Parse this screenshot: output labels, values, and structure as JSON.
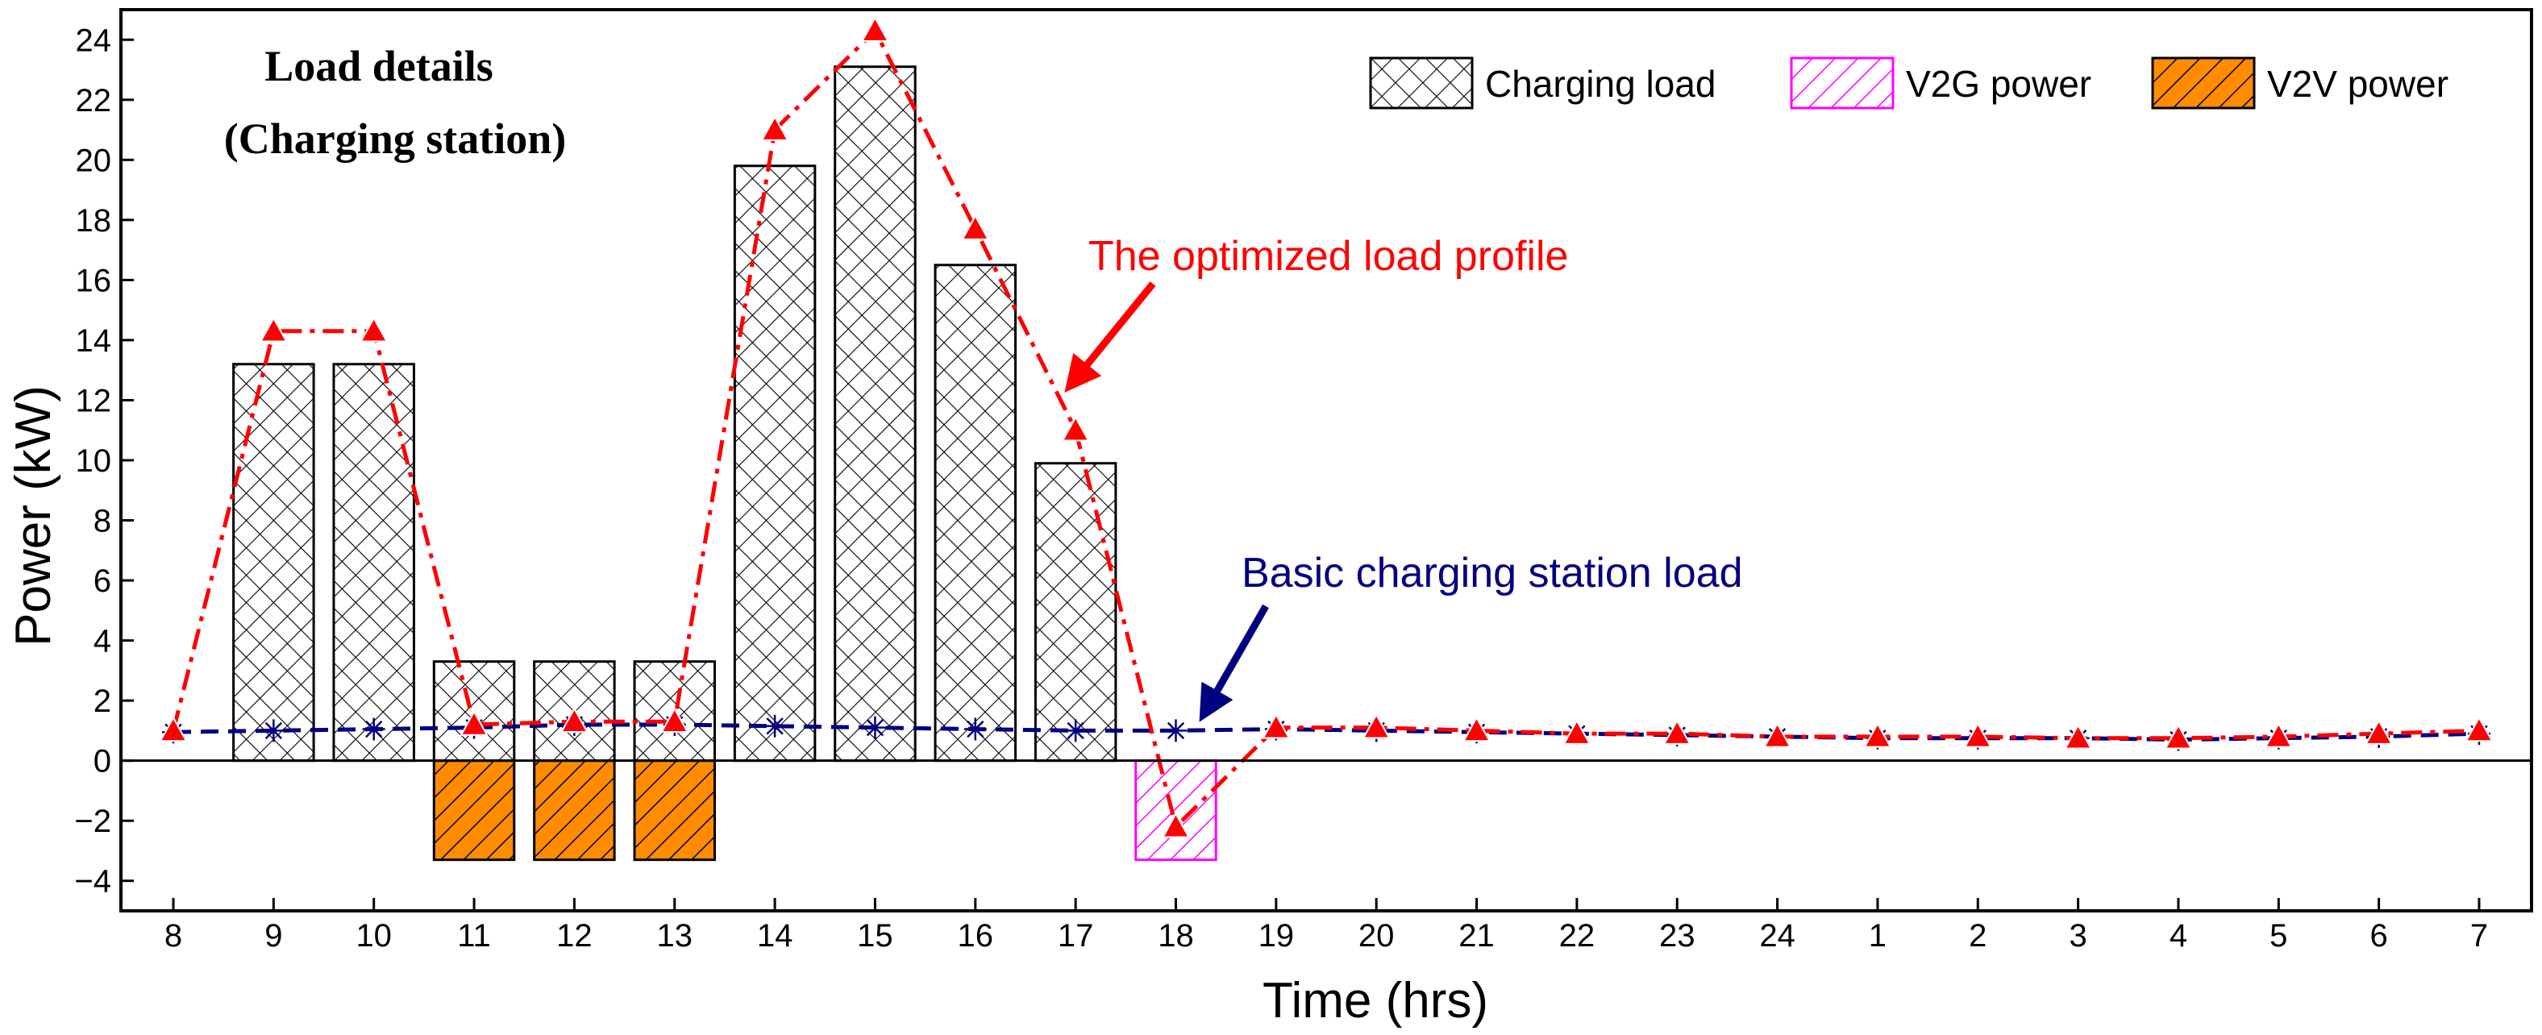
{
  "chart_data": {
    "type": "bar",
    "title_lines": [
      "Load details",
      "(Charging station)"
    ],
    "xlabel": "Time (hrs)",
    "ylabel": "Power (kW)",
    "ylim": [
      -5,
      25
    ],
    "yticks": [
      -4,
      -2,
      0,
      2,
      4,
      6,
      8,
      10,
      12,
      14,
      16,
      18,
      20,
      22,
      24
    ],
    "categories": [
      "8",
      "9",
      "10",
      "11",
      "12",
      "13",
      "14",
      "15",
      "16",
      "17",
      "18",
      "19",
      "20",
      "21",
      "22",
      "23",
      "24",
      "1",
      "2",
      "3",
      "4",
      "5",
      "6",
      "7"
    ],
    "legend": [
      "Charging load",
      "V2G power",
      "V2V power"
    ],
    "series": [
      {
        "name": "Charging load",
        "kind": "bar",
        "pattern": "crosshatch",
        "values": [
          0,
          13.2,
          13.2,
          3.3,
          3.3,
          3.3,
          19.8,
          23.1,
          16.5,
          9.9,
          0,
          0,
          0,
          0,
          0,
          0,
          0,
          0,
          0,
          0,
          0,
          0,
          0,
          0
        ]
      },
      {
        "name": "V2G power",
        "kind": "bar",
        "pattern": "diagonal",
        "values": [
          0,
          0,
          0,
          0,
          0,
          0,
          0,
          0,
          0,
          0,
          -3.3,
          0,
          0,
          0,
          0,
          0,
          0,
          0,
          0,
          0,
          0,
          0,
          0,
          0
        ]
      },
      {
        "name": "V2V power",
        "kind": "bar",
        "pattern": "diagonal-filled",
        "values": [
          0,
          0,
          0,
          -3.3,
          -3.3,
          -3.3,
          0,
          0,
          0,
          0,
          0,
          0,
          0,
          0,
          0,
          0,
          0,
          0,
          0,
          0,
          0,
          0,
          0,
          0
        ]
      },
      {
        "name": "The optimized load profile",
        "kind": "line",
        "values": [
          1.0,
          14.3,
          14.3,
          1.2,
          1.3,
          1.3,
          21.0,
          24.3,
          17.7,
          11.0,
          -2.2,
          1.1,
          1.1,
          1.0,
          0.9,
          0.9,
          0.8,
          0.8,
          0.8,
          0.75,
          0.75,
          0.8,
          0.9,
          1.0
        ]
      },
      {
        "name": "Basic charging station load",
        "kind": "line",
        "values": [
          0.95,
          1.0,
          1.05,
          1.1,
          1.2,
          1.2,
          1.15,
          1.1,
          1.05,
          1.0,
          1.0,
          1.05,
          1.0,
          0.95,
          0.9,
          0.85,
          0.8,
          0.75,
          0.75,
          0.75,
          0.7,
          0.75,
          0.8,
          0.9
        ]
      }
    ],
    "annotations": [
      {
        "text": "The optimized load profile",
        "color": "#ff0000",
        "points_to_category": "17"
      },
      {
        "text": "Basic charging station load",
        "color": "#000080",
        "points_to_category": "18"
      }
    ],
    "colors": {
      "optimized": "#ff0000",
      "basic": "#000080",
      "v2g": "#ff00ff",
      "v2v_fill": "#ff8c00",
      "bar_edge": "#000000"
    }
  }
}
